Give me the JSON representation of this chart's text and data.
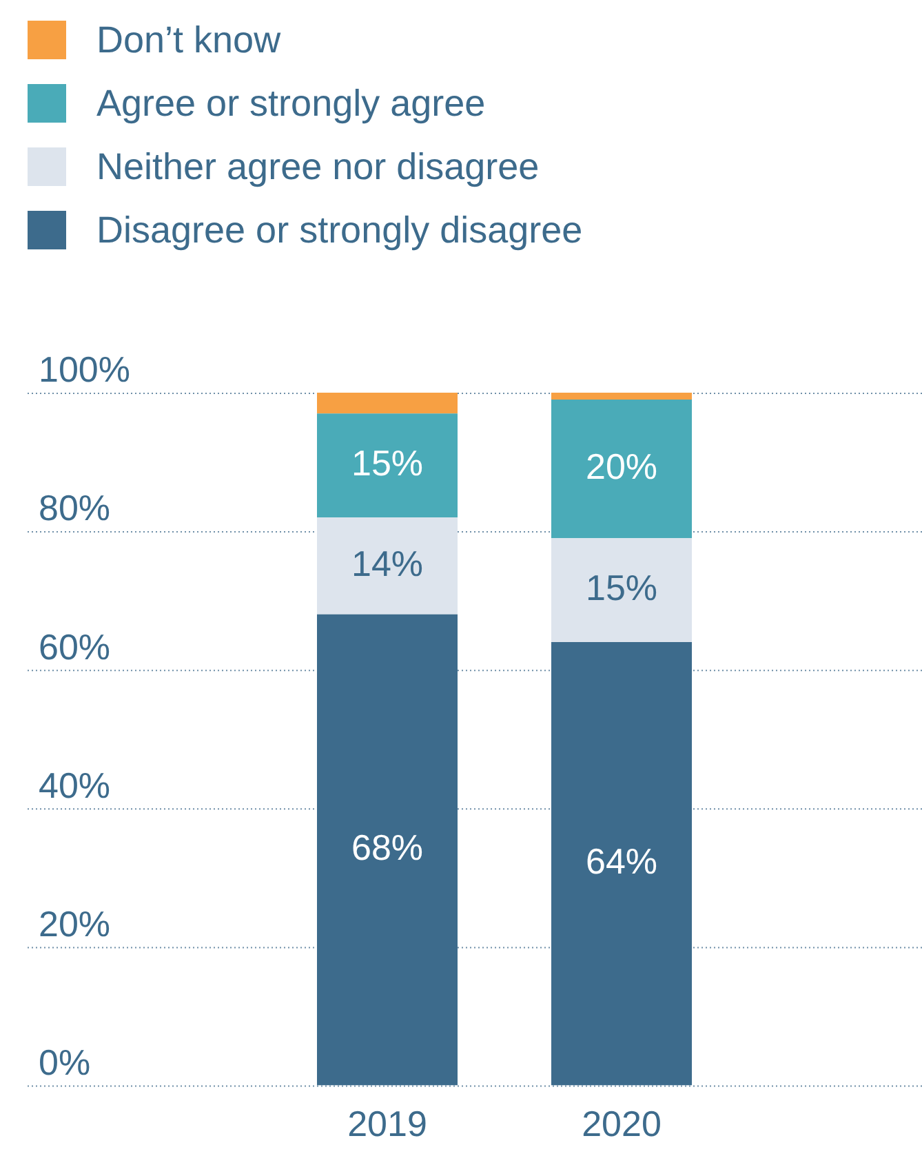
{
  "chart_data": {
    "type": "bar",
    "stacked": true,
    "categories": [
      "2019",
      "2020"
    ],
    "series": [
      {
        "name": "Disagree or strongly disagree",
        "color": "#3d6b8c",
        "values": [
          68,
          64
        ],
        "value_labels": [
          "68%",
          "64%"
        ]
      },
      {
        "name": "Neither agree nor disagree",
        "color": "#dde4ed",
        "values": [
          14,
          15
        ],
        "value_labels": [
          "14%",
          "15%"
        ]
      },
      {
        "name": "Agree or strongly agree",
        "color": "#4aabb8",
        "values": [
          15,
          20
        ],
        "value_labels": [
          "15%",
          "20%"
        ]
      },
      {
        "name": "Don’t know",
        "color": "#f7a043",
        "values": [
          3,
          1
        ],
        "value_labels": [
          null,
          null
        ]
      }
    ],
    "ylim": [
      0,
      100
    ],
    "yticks": [
      {
        "value": 0,
        "label": "0%"
      },
      {
        "value": 20,
        "label": "20%"
      },
      {
        "value": 40,
        "label": "40%"
      },
      {
        "value": 60,
        "label": "60%"
      },
      {
        "value": 80,
        "label": "80%"
      },
      {
        "value": 100,
        "label": "100%"
      }
    ],
    "grid": "y",
    "legend": "top left"
  }
}
